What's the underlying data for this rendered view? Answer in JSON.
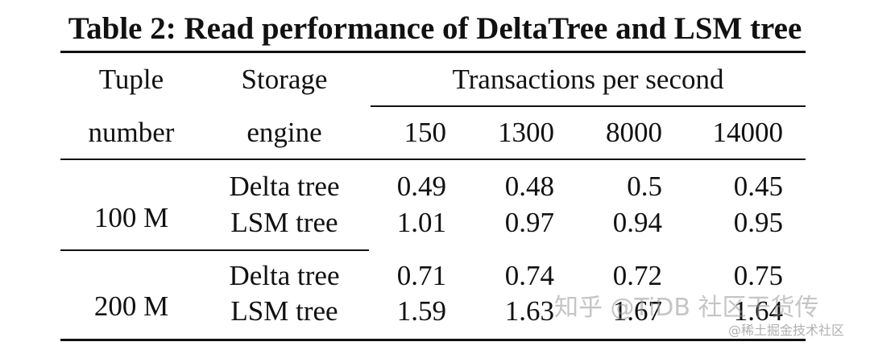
{
  "table": {
    "caption": "Table 2: Read performance of DeltaTree and LSM tree",
    "header": {
      "tuple_line1": "Tuple",
      "tuple_line2": "number",
      "storage_line1": "Storage",
      "storage_line2": "engine",
      "tps_group": "Transactions per second",
      "tps_columns": [
        "150",
        "1300",
        "8000",
        "14000"
      ]
    },
    "groups": [
      {
        "tuple_number": "100 M",
        "rows": [
          {
            "engine": "Delta tree",
            "values": [
              "0.49",
              "0.48",
              "0.5",
              "0.45"
            ]
          },
          {
            "engine": "LSM tree",
            "values": [
              "1.01",
              "0.97",
              "0.94",
              "0.95"
            ]
          }
        ]
      },
      {
        "tuple_number": "200 M",
        "rows": [
          {
            "engine": "Delta tree",
            "values": [
              "0.71",
              "0.74",
              "0.72",
              "0.75"
            ]
          },
          {
            "engine": "LSM tree",
            "values": [
              "1.59",
              "1.63",
              "1.67",
              "1.64"
            ]
          }
        ]
      }
    ]
  },
  "watermark": {
    "main": "知乎 @TiDB 社区干货传",
    "sub": "@稀土掘金技术社区"
  }
}
